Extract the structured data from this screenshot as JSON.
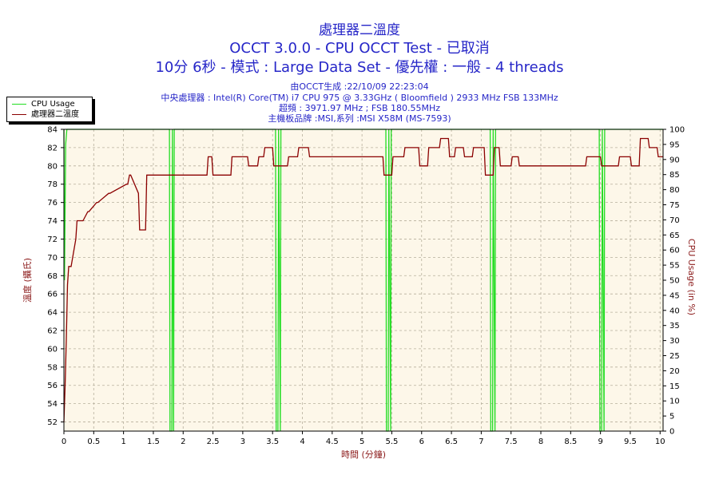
{
  "header": {
    "chart_title": "處理器二溫度",
    "test_title": "OCCT 3.0.0 - CPU OCCT Test - 已取消",
    "test_subtitle": "10分 6秒 - 模式 : Large Data Set - 優先權 : 一般 - 4 threads",
    "generated": "由OCCT生成 :22/10/09 22:23:04",
    "cpu": "中央處理器 : Intel(R) Core(TM) i7 CPU 975 @ 3.33GHz ( Bloomfield ) 2933 MHz FSB 133MHz",
    "overclock": "超頻 : 3971.97 MHz ; FSB 180.55MHz",
    "motherboard": "主機板品牌 :MSI,系列 :MSI X58M (MS-7593)"
  },
  "colors": {
    "temp_line": "#8b0000",
    "cpu_line": "#22dd22",
    "plot_bg": "#fdf7e9",
    "grid": "#b7b09d",
    "text": "#2626c8",
    "left_axis_text": "#8b1a1a"
  },
  "chart_data": {
    "type": "line",
    "title": "處理器二溫度",
    "xlabel": "時間 (分鐘)",
    "ylabel_left": "溫度 (攝氏)",
    "ylabel_right": "CPU Usage (in %)",
    "xlim": [
      0,
      10.05
    ],
    "ylim_left": [
      51,
      84
    ],
    "ylim_right": [
      0,
      100
    ],
    "x_ticks": [
      "0",
      "0.5",
      "1",
      "1.5",
      "2",
      "2.5",
      "3",
      "3.5",
      "4",
      "4.5",
      "5",
      "5.5",
      "6",
      "6.5",
      "7",
      "7.5",
      "8",
      "8.5",
      "9",
      "9.5",
      "10"
    ],
    "y_left_ticks": [
      "52",
      "54",
      "56",
      "58",
      "60",
      "62",
      "64",
      "66",
      "68",
      "70",
      "72",
      "74",
      "76",
      "78",
      "80",
      "82",
      "84"
    ],
    "y_right_ticks": [
      "0",
      "5",
      "10",
      "15",
      "20",
      "25",
      "30",
      "35",
      "40",
      "45",
      "50",
      "55",
      "60",
      "65",
      "70",
      "75",
      "80",
      "85",
      "90",
      "95",
      "100"
    ],
    "grid": true,
    "legend_position": "top-left",
    "series": [
      {
        "name": "CPU Usage",
        "axis": "right",
        "x": [
          0,
          0.01,
          0.03,
          0.05,
          1.77,
          1.78,
          1.81,
          1.82,
          1.84,
          1.85,
          3.55,
          3.56,
          3.59,
          3.6,
          3.63,
          3.64,
          5.4,
          5.41,
          5.44,
          5.45,
          5.48,
          5.49,
          7.15,
          7.16,
          7.19,
          7.2,
          7.23,
          7.24,
          8.98,
          8.99,
          9.02,
          9.03,
          9.06,
          9.07,
          10.05
        ],
        "values": [
          100,
          50,
          95,
          100,
          100,
          0,
          0,
          100,
          0,
          100,
          100,
          0,
          0,
          100,
          0,
          100,
          100,
          0,
          0,
          100,
          0,
          100,
          100,
          0,
          0,
          100,
          0,
          100,
          100,
          0,
          0,
          100,
          0,
          100,
          100
        ]
      },
      {
        "name": "處理器二溫度",
        "axis": "left",
        "x": [
          0,
          0.02,
          0.04,
          0.06,
          0.08,
          0.1,
          0.12,
          0.2,
          0.22,
          0.3,
          0.32,
          0.4,
          0.42,
          0.55,
          0.57,
          0.75,
          0.77,
          1.05,
          1.07,
          1.1,
          1.12,
          1.25,
          1.27,
          1.37,
          1.39,
          1.45,
          2.4,
          2.42,
          2.48,
          2.5,
          2.8,
          2.82,
          3.08,
          3.1,
          3.25,
          3.27,
          3.35,
          3.37,
          3.5,
          3.52,
          3.75,
          3.77,
          3.92,
          3.94,
          4.1,
          4.12,
          5.35,
          5.37,
          5.5,
          5.52,
          5.7,
          5.72,
          5.95,
          5.97,
          6.1,
          6.12,
          6.3,
          6.32,
          6.45,
          6.47,
          6.55,
          6.57,
          6.7,
          6.72,
          6.85,
          6.87,
          7.05,
          7.07,
          7.2,
          7.22,
          7.3,
          7.32,
          7.5,
          7.52,
          7.62,
          7.64,
          8.75,
          8.77,
          9.0,
          9.02,
          9.3,
          9.32,
          9.5,
          9.52,
          9.65,
          9.67,
          9.8,
          9.82,
          9.95,
          9.97,
          10.05
        ],
        "values": [
          52,
          56,
          61,
          67,
          69,
          69,
          69,
          72,
          74,
          74,
          74,
          75,
          75,
          76,
          76,
          77,
          77,
          78,
          78,
          79,
          79,
          77,
          73,
          73,
          79,
          79,
          79,
          81,
          81,
          79,
          79,
          81,
          81,
          80,
          80,
          81,
          81,
          82,
          82,
          80,
          80,
          81,
          81,
          82,
          82,
          81,
          81,
          79,
          79,
          81,
          81,
          82,
          82,
          80,
          80,
          82,
          82,
          83,
          83,
          81,
          81,
          82,
          82,
          81,
          81,
          82,
          82,
          79,
          79,
          82,
          82,
          80,
          80,
          81,
          81,
          80,
          80,
          81,
          81,
          80,
          80,
          81,
          81,
          80,
          80,
          83,
          83,
          82,
          82,
          81,
          81
        ]
      }
    ]
  }
}
